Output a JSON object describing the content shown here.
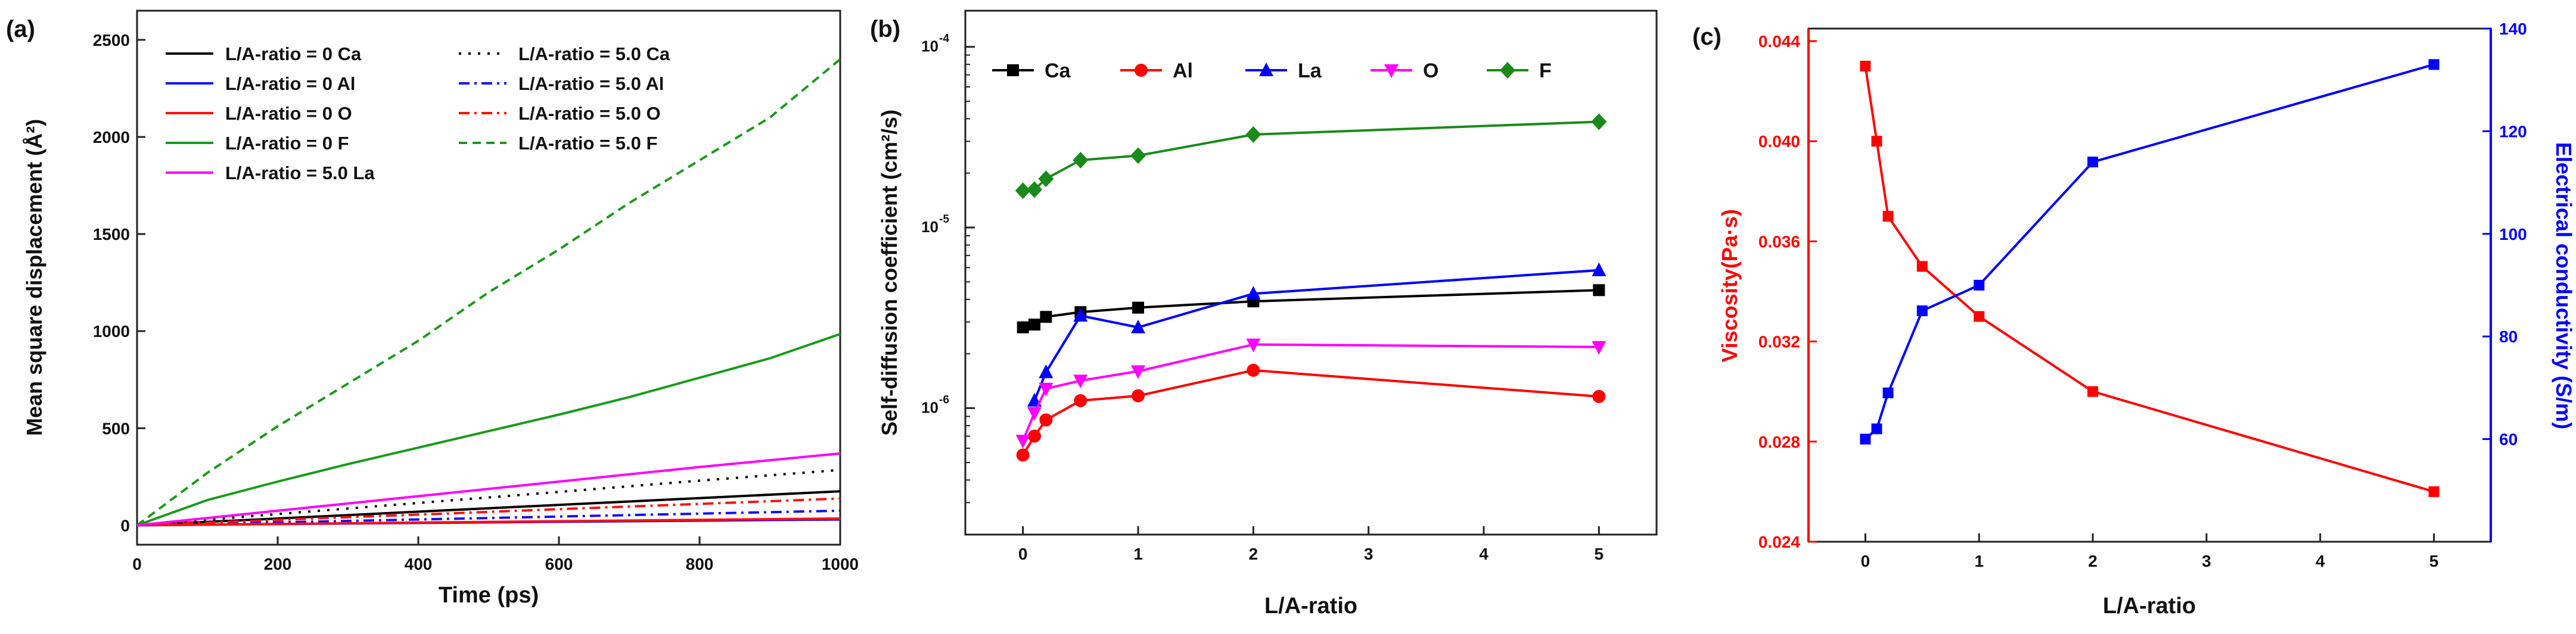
{
  "chart_data": [
    {
      "panel_label": "(a)",
      "type": "line",
      "xlabel": "Time (ps)",
      "ylabel": "Mean square displacement (Å²)",
      "xlim": [
        0,
        1000
      ],
      "ylim": [
        -100,
        2650
      ],
      "xticks": [
        0,
        200,
        400,
        600,
        800,
        1000
      ],
      "yticks": [
        0,
        500,
        1000,
        1500,
        2000,
        2500
      ],
      "legend_placement": "top-left",
      "series": [
        {
          "name": "L/A-ratio = 0 Ca",
          "color": "#000000",
          "dash": "solid",
          "x": [
            0,
            200,
            400,
            600,
            800,
            1000
          ],
          "y": [
            0,
            35,
            70,
            105,
            140,
            175
          ]
        },
        {
          "name": "L/A-ratio = 5.0 Ca",
          "color": "#000000",
          "dash": "dot",
          "x": [
            0,
            200,
            400,
            600,
            800,
            1000
          ],
          "y": [
            0,
            58,
            115,
            172,
            230,
            285
          ]
        },
        {
          "name": "L/A-ratio = 0 Al",
          "color": "#1010ff",
          "dash": "solid",
          "x": [
            0,
            200,
            400,
            600,
            800,
            1000
          ],
          "y": [
            0,
            6,
            12,
            18,
            24,
            30
          ]
        },
        {
          "name": "L/A-ratio = 5.0 Al",
          "color": "#1010ff",
          "dash": "dashdot",
          "x": [
            0,
            200,
            400,
            600,
            800,
            1000
          ],
          "y": [
            0,
            15,
            30,
            45,
            60,
            75
          ]
        },
        {
          "name": "L/A-ratio = 0 O",
          "color": "#ff1010",
          "dash": "solid",
          "x": [
            0,
            200,
            400,
            600,
            800,
            1000
          ],
          "y": [
            0,
            7,
            14,
            21,
            28,
            35
          ]
        },
        {
          "name": "L/A-ratio = 5.0 O",
          "color": "#ff1010",
          "dash": "dashdot",
          "x": [
            0,
            200,
            400,
            600,
            800,
            1000
          ],
          "y": [
            0,
            28,
            55,
            83,
            110,
            138
          ]
        },
        {
          "name": "L/A-ratio = 0 F",
          "color": "#1a9a1a",
          "dash": "solid",
          "x": [
            0,
            100,
            200,
            300,
            400,
            500,
            600,
            700,
            800,
            900,
            1000
          ],
          "y": [
            0,
            130,
            225,
            315,
            400,
            485,
            570,
            660,
            760,
            860,
            985
          ]
        },
        {
          "name": "L/A-ratio = 5.0 F",
          "color": "#1a9a1a",
          "dash": "dash",
          "x": [
            0,
            100,
            200,
            300,
            400,
            500,
            600,
            700,
            800,
            900,
            1000
          ],
          "y": [
            0,
            270,
            510,
            730,
            950,
            1200,
            1420,
            1660,
            1880,
            2100,
            2400
          ]
        },
        {
          "name": "L/A-ratio = 5.0 La",
          "color": "#ff00ff",
          "dash": "solid",
          "x": [
            0,
            200,
            400,
            600,
            800,
            1000
          ],
          "y": [
            0,
            75,
            150,
            225,
            300,
            370
          ]
        }
      ]
    },
    {
      "panel_label": "(b)",
      "type": "line",
      "scale": "log",
      "xlabel": "L/A-ratio",
      "ylabel": "Self-diffusion coefficient (cm²/s)",
      "xlim": [
        -0.5,
        5.5
      ],
      "ylim_log10": [
        -6.7,
        -3.8
      ],
      "xticks": [
        0,
        1,
        2,
        3,
        4,
        5
      ],
      "ytick_labels": [
        {
          "exp": -6,
          "base": "10",
          "sup": "-6"
        },
        {
          "exp": -5,
          "base": "10",
          "sup": "-5"
        },
        {
          "exp": -4,
          "base": "10",
          "sup": "-4"
        }
      ],
      "legend_placement": "top",
      "x": [
        0,
        0.1,
        0.2,
        0.5,
        1,
        2,
        5
      ],
      "series": [
        {
          "name": "Ca",
          "color": "#000000",
          "marker": "square",
          "values": [
            2.8e-06,
            2.9e-06,
            3.2e-06,
            3.4e-06,
            3.6e-06,
            3.9e-06,
            4.5e-06
          ]
        },
        {
          "name": "Al",
          "color": "#ff0000",
          "marker": "circle",
          "values": [
            5.5e-07,
            7e-07,
            8.6e-07,
            1.1e-06,
            1.17e-06,
            1.62e-06,
            1.16e-06
          ]
        },
        {
          "name": "La",
          "color": "#0000ff",
          "marker": "triangle-up",
          "values": [
            null,
            1.1e-06,
            1.58e-06,
            3.25e-06,
            2.8e-06,
            4.3e-06,
            5.8e-06
          ]
        },
        {
          "name": "O",
          "color": "#ff00ff",
          "marker": "triangle-down",
          "values": [
            6.6e-07,
            9.4e-07,
            1.28e-06,
            1.42e-06,
            1.6e-06,
            2.25e-06,
            2.18e-06
          ]
        },
        {
          "name": "F",
          "color": "#1a8a1a",
          "marker": "diamond",
          "values": [
            1.6e-05,
            1.62e-05,
            1.86e-05,
            2.36e-05,
            2.5e-05,
            3.27e-05,
            3.85e-05
          ]
        }
      ]
    },
    {
      "panel_label": "(c)",
      "type": "line",
      "xlabel": "L/A-ratio",
      "xlim": [
        -0.5,
        5.5
      ],
      "xticks": [
        0,
        1,
        2,
        3,
        4,
        5
      ],
      "x": [
        0,
        0.1,
        0.2,
        0.5,
        1,
        2,
        5
      ],
      "left_axis": {
        "label": "Viscosity(Pa·s)",
        "color": "#ff0000",
        "ylim": [
          0.024,
          0.0445
        ],
        "ticks": [
          "0.024",
          "0.028",
          "0.032",
          "0.036",
          "0.040",
          "0.044"
        ],
        "tick_values": [
          0.024,
          0.028,
          0.032,
          0.036,
          0.04,
          0.044
        ]
      },
      "right_axis": {
        "label": "Electrical conductivity (S/m)",
        "color": "#0000ff",
        "ylim": [
          40,
          140
        ],
        "ticks": [
          "60",
          "80",
          "100",
          "120",
          "140"
        ],
        "tick_values": [
          60,
          80,
          100,
          120,
          140
        ]
      },
      "series": [
        {
          "name": "Viscosity",
          "axis": "left",
          "color": "#ff0000",
          "marker": "square",
          "values": [
            0.043,
            0.04,
            0.037,
            0.035,
            0.033,
            0.03,
            0.026
          ]
        },
        {
          "name": "Electrical conductivity",
          "axis": "right",
          "color": "#0000ff",
          "marker": "square",
          "values": [
            60,
            62,
            69,
            85,
            90,
            114,
            133
          ]
        }
      ]
    }
  ]
}
